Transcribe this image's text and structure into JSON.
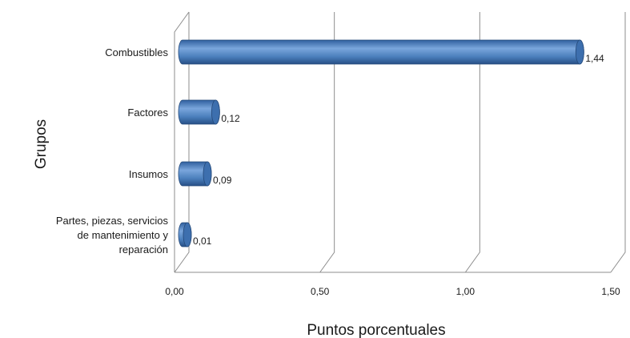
{
  "chart_data": {
    "type": "bar",
    "orientation": "horizontal",
    "xlabel": "Puntos porcentuales",
    "ylabel": "Grupos",
    "xlim": [
      0,
      1.5
    ],
    "xticks": [
      "0,00",
      "0,50",
      "1,00",
      "1,50"
    ],
    "grid": true,
    "categories": [
      [
        "Combustibles"
      ],
      [
        "Factores"
      ],
      [
        "Insumos"
      ],
      [
        "Partes, piezas, servicios",
        "de mantenimiento y",
        "reparación"
      ]
    ],
    "values": [
      1.44,
      0.12,
      0.09,
      0.01
    ],
    "value_labels": [
      "1,44",
      "0,12",
      "0,09",
      "0,01"
    ],
    "colors": {
      "bar": "#4a7ebb",
      "bar_dark": "#2c5a95",
      "bar_light": "#8fb4e3",
      "grid": "#8c8c8c"
    }
  }
}
